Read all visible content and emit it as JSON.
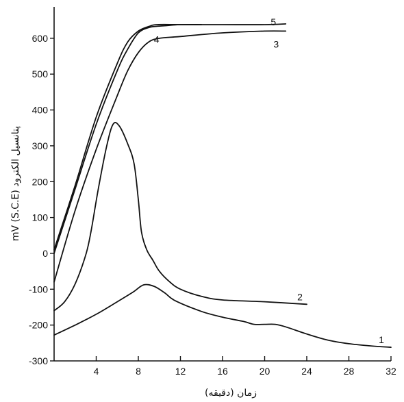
{
  "chart_data": {
    "type": "line",
    "xlabel": "زمان (دقیقه)",
    "ylabel": "پتانسیل الکترود mV (S.C.E)",
    "xlim": [
      0,
      32
    ],
    "ylim": [
      -300,
      680
    ],
    "xticks": [
      4,
      8,
      12,
      16,
      20,
      24,
      28,
      32
    ],
    "yticks": [
      -300,
      -200,
      -100,
      0,
      100,
      200,
      300,
      400,
      500,
      600
    ],
    "series": [
      {
        "name": "1",
        "x": [
          0,
          2,
          4,
          6,
          7.5,
          8.5,
          9.5,
          10.5,
          11.5,
          14,
          16,
          18,
          19,
          20,
          21,
          22,
          24,
          26,
          28,
          30,
          32
        ],
        "y": [
          -228,
          -200,
          -170,
          -135,
          -108,
          -88,
          -92,
          -110,
          -132,
          -162,
          -178,
          -190,
          -198,
          -198,
          -198,
          -205,
          -225,
          -242,
          -252,
          -258,
          -262
        ]
      },
      {
        "name": "2",
        "x": [
          0,
          1,
          2,
          3,
          3.5,
          4.2,
          5,
          5.6,
          6.2,
          7,
          7.6,
          8,
          8.3,
          8.8,
          9.4,
          10,
          11,
          12,
          14,
          16,
          20,
          24
        ],
        "y": [
          -160,
          -135,
          -85,
          -5,
          60,
          180,
          300,
          360,
          355,
          305,
          250,
          150,
          60,
          10,
          -20,
          -50,
          -80,
          -100,
          -120,
          -130,
          -135,
          -142
        ]
      },
      {
        "name": "3",
        "x": [
          0,
          2,
          4,
          6,
          7,
          8,
          9,
          10,
          12,
          16,
          20,
          22
        ],
        "y": [
          -80,
          120,
          290,
          440,
          510,
          560,
          590,
          600,
          605,
          615,
          620,
          620
        ]
      },
      {
        "name": "4",
        "x": [
          0,
          2,
          4,
          6,
          7,
          8,
          9,
          9.6,
          10.5,
          12,
          14
        ],
        "y": [
          0,
          180,
          360,
          510,
          570,
          615,
          630,
          633,
          635,
          638,
          638
        ]
      },
      {
        "name": "5",
        "x": [
          0,
          2,
          4,
          6,
          7,
          8,
          9,
          9.8,
          12,
          16,
          20,
          22
        ],
        "y": [
          10,
          190,
          380,
          530,
          590,
          620,
          633,
          638,
          638,
          638,
          638,
          640
        ]
      }
    ]
  }
}
